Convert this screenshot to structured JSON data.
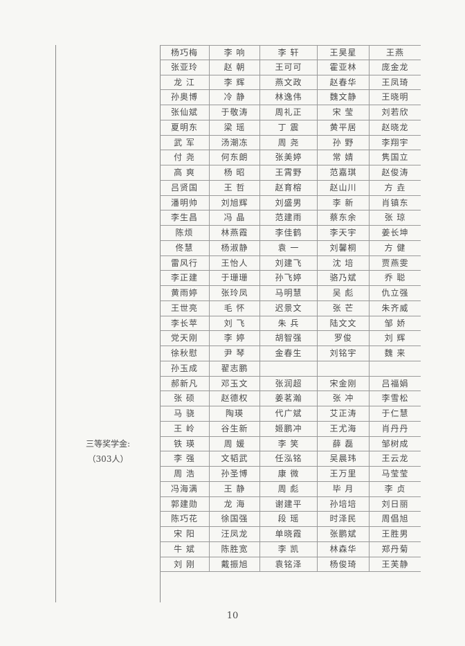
{
  "section_label": "三等奖学金:",
  "section_count": "（303人）",
  "page_number": "10",
  "rows": [
    [
      "杨巧梅",
      "李 响",
      "李 轩",
      "王昊星",
      "王燕"
    ],
    [
      "张亚玲",
      "赵 朝",
      "王可可",
      "霍亚林",
      "庞金龙"
    ],
    [
      "龙 江",
      "李 辉",
      "燕文政",
      "赵春华",
      "王凤琦"
    ],
    [
      "孙奥博",
      "冷 静",
      "林逸伟",
      "魏文静",
      "王晓明"
    ],
    [
      "张仙斌",
      "于敬涛",
      "周礼正",
      "宋 莹",
      "刘若欣"
    ],
    [
      "夏明东",
      "梁 瑶",
      "丁 震",
      "黄平居",
      "赵晓龙"
    ],
    [
      "武 军",
      "汤潮冻",
      "周 尧",
      "孙 野",
      "李翔宇"
    ],
    [
      "付 尧",
      "何东朗",
      "张美婷",
      "常 婧",
      "隽国立"
    ],
    [
      "高 爽",
      "杨 昭",
      "王霄野",
      "范嘉琪",
      "赵俊涛"
    ],
    [
      "吕贤国",
      "王 哲",
      "赵育榕",
      "赵山川",
      "方 垚"
    ],
    [
      "潘明帅",
      "刘旭辉",
      "刘盛男",
      "李 新",
      "肖镇东"
    ],
    [
      "李生昌",
      "冯 晶",
      "范建雨",
      "蔡东余",
      "张 琼"
    ],
    [
      "陈烦",
      "林燕霞",
      "李佳鹤",
      "李天宇",
      "姜长坤"
    ],
    [
      "佟慧",
      "杨淑静",
      "袁 一",
      "刘馨桐",
      "方 健"
    ],
    [
      "雷风行",
      "王怡人",
      "刘建飞",
      "沈 培",
      "贾燕雯"
    ],
    [
      "李正建",
      "于珊珊",
      "孙飞婷",
      "骆乃斌",
      "乔 聪"
    ],
    [
      "黄雨婷",
      "张玲凤",
      "马明慧",
      "吴 彪",
      "仇立强"
    ],
    [
      "王世亮",
      "毛 怀",
      "迟景文",
      "张 芒",
      "朱齐威"
    ],
    [
      "李长苹",
      "刘 飞",
      "朱 兵",
      "陆文文",
      "邹 娇"
    ],
    [
      "党天刚",
      "李 婷",
      "胡智强",
      "罗俊",
      "刘 辉"
    ],
    [
      "徐秋慰",
      "尹 琴",
      "金春生",
      "刘铭宇",
      "魏 来"
    ],
    [
      "孙玉成",
      "翟志鹏",
      "",
      "",
      ""
    ],
    [
      "郝新凡",
      "邓玉文",
      "张润超",
      "宋金刚",
      "吕福娟"
    ],
    [
      "张 硕",
      "赵德权",
      "姜茗瀚",
      "张 冲",
      "李雪松"
    ],
    [
      "马 骁",
      "陶瑛",
      "代广斌",
      "艾正涛",
      "于仁慧"
    ],
    [
      "王 岭",
      "谷生新",
      "姬鹏冲",
      "王尤海",
      "肖丹丹"
    ],
    [
      "铁 瑛",
      "周 媛",
      "李 笑",
      "薛 磊",
      "邹树成"
    ],
    [
      "李 强",
      "文韬武",
      "任泓铭",
      "吴晨玮",
      "王云龙"
    ],
    [
      "周 浩",
      "孙圣博",
      "康 微",
      "王万里",
      "马莹莹"
    ],
    [
      "冯海满",
      "王 静",
      "周 彪",
      "毕 月",
      "李 贞"
    ],
    [
      "郭建勋",
      "龙 海",
      "谢建平",
      "孙培培",
      "刘日丽"
    ],
    [
      "陈巧花",
      "徐国强",
      "段 瑶",
      "时泽民",
      "周倡旭"
    ],
    [
      "宋 阳",
      "汪凤龙",
      "单晓霞",
      "张鹏斌",
      "王胜男"
    ],
    [
      "牛 斌",
      "陈胜宽",
      "李 凯",
      "林森华",
      "郑丹菊"
    ],
    [
      "刘 刚",
      "戴振旭",
      "袁铭泽",
      "杨俊琦",
      "王芙静"
    ]
  ]
}
